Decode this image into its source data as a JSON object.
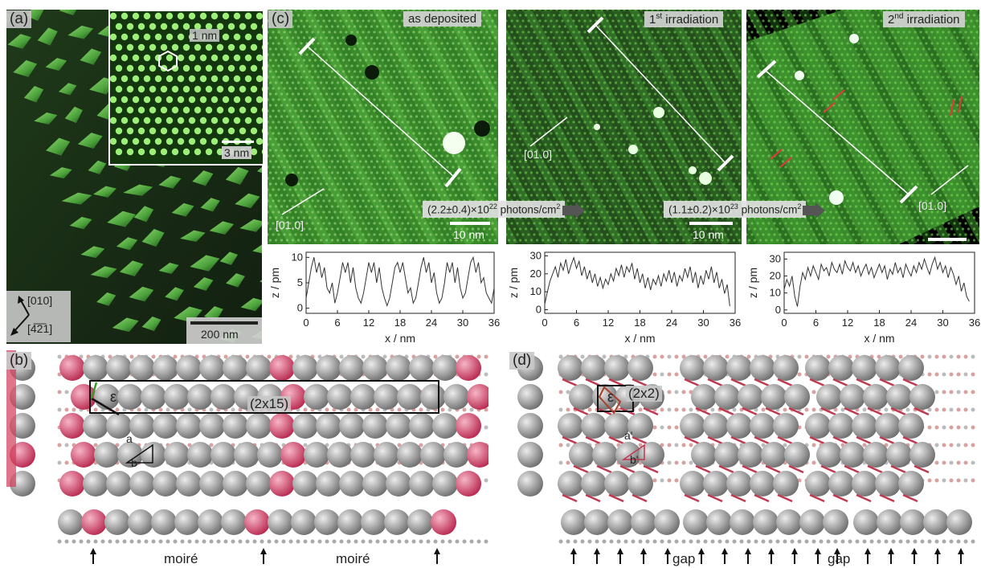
{
  "panels": {
    "a": {
      "label": "(a)",
      "inset_label": "1 nm",
      "inset_scale": "3 nm",
      "scale": "200 nm",
      "dir1": "[010]",
      "dir2": "[4̅2̅1]"
    },
    "c": {
      "label": "(c)",
      "images": [
        {
          "title": "as deposited",
          "direction": "[01.0]",
          "scale": "10 nm"
        },
        {
          "title_main": "1",
          "title_sup": "st",
          "title_rest": " irradiation",
          "direction": "[01.0]",
          "scale": "10 nm"
        },
        {
          "title_main": "2",
          "title_sup": "nd",
          "title_rest": " irradiation",
          "direction": "[01.0]",
          "scale": ""
        }
      ],
      "doses": [
        {
          "prefix": "(2.2±0.4)×10",
          "exp": "22",
          "suffix": " photons/cm",
          "sup": "2"
        },
        {
          "prefix": "(1.1±0.2)×10",
          "exp": "23",
          "suffix": " photons/cm",
          "sup": "2"
        }
      ]
    },
    "b": {
      "label": "(b)",
      "cell": "(2x15)",
      "epsilon": "ε",
      "a": "a",
      "b": "b",
      "moire": [
        "moiré",
        "moiré"
      ]
    },
    "d": {
      "label": "(d)",
      "cell": "(2x2)",
      "epsilon": "ε",
      "a": "a'",
      "b": "b'",
      "gap": [
        "gap",
        "gap"
      ]
    }
  },
  "chart_data": [
    {
      "type": "line",
      "xlabel": "x / nm",
      "ylabel": "z / pm",
      "xlim": [
        0,
        36
      ],
      "ylim": [
        -1,
        11
      ],
      "xticks": [
        0,
        6,
        12,
        18,
        24,
        30,
        36
      ],
      "yticks": [
        0,
        5,
        10
      ],
      "x": [
        0,
        0.5,
        1,
        1.5,
        2,
        2.5,
        3,
        3.5,
        4,
        4.5,
        5,
        5.5,
        6,
        6.5,
        7,
        7.5,
        8,
        8.5,
        9,
        9.5,
        10,
        10.5,
        11,
        11.5,
        12,
        12.5,
        13,
        13.5,
        14,
        14.5,
        15,
        15.5,
        16,
        16.5,
        17,
        17.5,
        18,
        18.5,
        19,
        19.5,
        20,
        20.5,
        21,
        21.5,
        22,
        22.5,
        23,
        23.5,
        24,
        24.5,
        25,
        25.5,
        26,
        26.5,
        27,
        27.5,
        28,
        28.5,
        29,
        29.5,
        30,
        30.5,
        31,
        31.5,
        32,
        32.5,
        33,
        33.5,
        34,
        34.5,
        35,
        35.5,
        36
      ],
      "y": [
        2,
        5,
        8,
        10,
        7,
        9,
        6,
        8,
        4,
        3,
        5,
        1,
        3,
        6,
        9,
        7,
        9,
        5,
        8,
        4,
        2,
        1,
        3,
        6,
        9,
        7,
        9,
        5,
        8,
        4,
        2,
        0.5,
        2,
        5,
        8,
        9,
        7,
        9,
        6,
        3,
        4,
        1,
        2,
        5,
        8,
        10,
        7,
        9,
        5,
        7,
        3,
        1,
        2,
        5,
        9,
        7,
        9,
        5,
        8,
        4,
        2,
        3,
        6,
        9,
        10,
        7,
        9,
        5,
        6,
        3,
        2,
        1,
        4
      ]
    },
    {
      "type": "line",
      "xlabel": "x / nm",
      "ylabel": "z / pm",
      "xlim": [
        0,
        36
      ],
      "ylim": [
        -2,
        32
      ],
      "xticks": [
        0,
        6,
        12,
        18,
        24,
        30,
        36
      ],
      "yticks": [
        0,
        10,
        20,
        30
      ],
      "x": [
        0,
        0.5,
        1,
        1.5,
        2,
        2.5,
        3,
        3.5,
        4,
        4.5,
        5,
        5.5,
        6,
        6.5,
        7,
        7.5,
        8,
        8.5,
        9,
        9.5,
        10,
        10.5,
        11,
        11.5,
        12,
        12.5,
        13,
        13.5,
        14,
        14.5,
        15,
        15.5,
        16,
        16.5,
        17,
        17.5,
        18,
        18.5,
        19,
        19.5,
        20,
        20.5,
        21,
        21.5,
        22,
        22.5,
        23,
        23.5,
        24,
        24.5,
        25,
        25.5,
        26,
        26.5,
        27,
        27.5,
        28,
        28.5,
        29,
        29.5,
        30,
        30.5,
        31,
        31.5,
        32,
        32.5,
        33,
        33.5,
        34,
        34.5,
        35
      ],
      "y": [
        3,
        10,
        16,
        20,
        24,
        18,
        26,
        22,
        28,
        20,
        25,
        29,
        23,
        27,
        19,
        24,
        17,
        22,
        15,
        20,
        13,
        18,
        12,
        17,
        14,
        20,
        16,
        23,
        19,
        25,
        18,
        24,
        21,
        26,
        17,
        23,
        15,
        20,
        12,
        18,
        11,
        17,
        14,
        19,
        13,
        20,
        16,
        22,
        15,
        21,
        13,
        19,
        16,
        23,
        18,
        24,
        15,
        21,
        12,
        19,
        14,
        22,
        17,
        24,
        15,
        21,
        12,
        17,
        9,
        14,
        2
      ]
    },
    {
      "type": "line",
      "xlabel": "x / nm",
      "ylabel": "z / pm",
      "xlim": [
        0,
        36
      ],
      "ylim": [
        -2,
        34
      ],
      "xticks": [
        0,
        6,
        12,
        18,
        24,
        30,
        36
      ],
      "yticks": [
        0,
        10,
        20,
        30
      ],
      "x": [
        0,
        0.5,
        1,
        1.5,
        2,
        2.5,
        3,
        3.5,
        4,
        4.5,
        5,
        5.5,
        6,
        6.5,
        7,
        7.5,
        8,
        8.5,
        9,
        9.5,
        10,
        10.5,
        11,
        11.5,
        12,
        12.5,
        13,
        13.5,
        14,
        14.5,
        15,
        15.5,
        16,
        16.5,
        17,
        17.5,
        18,
        18.5,
        19,
        19.5,
        20,
        20.5,
        21,
        21.5,
        22,
        22.5,
        23,
        23.5,
        24,
        24.5,
        25,
        25.5,
        26,
        26.5,
        27,
        27.5,
        28,
        28.5,
        29,
        29.5,
        30,
        30.5,
        31,
        31.5,
        32,
        32.5,
        33,
        33.5,
        34,
        34.5,
        35
      ],
      "y": [
        12,
        18,
        14,
        20,
        8,
        2,
        14,
        22,
        18,
        25,
        20,
        26,
        22,
        18,
        27,
        23,
        25,
        20,
        28,
        24,
        22,
        27,
        21,
        29,
        25,
        23,
        28,
        22,
        26,
        20,
        24,
        27,
        21,
        25,
        19,
        23,
        27,
        22,
        26,
        18,
        24,
        21,
        28,
        22,
        25,
        19,
        27,
        23,
        20,
        26,
        22,
        28,
        24,
        30,
        25,
        21,
        27,
        31,
        24,
        28,
        22,
        26,
        19,
        25,
        21,
        15,
        20,
        11,
        16,
        8,
        5
      ]
    }
  ]
}
